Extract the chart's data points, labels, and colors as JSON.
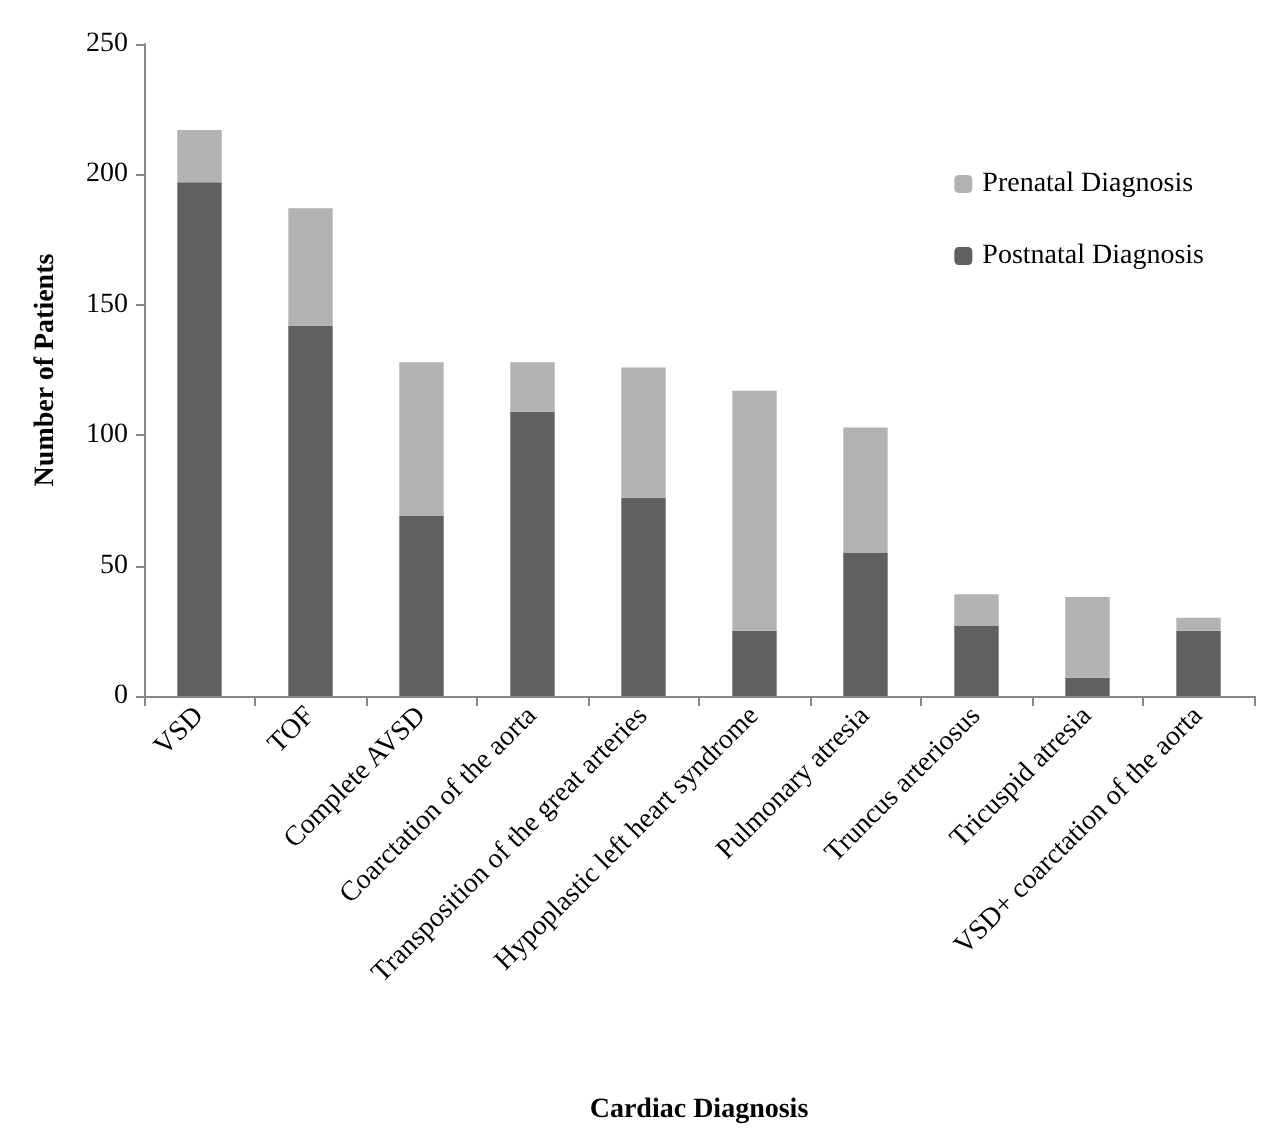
{
  "chart_data": {
    "type": "bar",
    "stacked": true,
    "xlabel": "Cardiac Diagnosis",
    "ylabel": "Number of Patients",
    "categories": [
      "VSD",
      "TOF",
      "Complete AVSD",
      "Coarctation of the aorta",
      "Transposition of the great arteries",
      "Hypoplastic left heart syndrome",
      "Pulmonary atresia",
      "Truncus arteriosus",
      "Tricuspid atresia",
      "VSD+ coarctation of the aorta"
    ],
    "series": [
      {
        "name": "Postnatal Diagnosis",
        "color": "#606060",
        "values": [
          197,
          142,
          69,
          109,
          76,
          25,
          55,
          27,
          7,
          25
        ]
      },
      {
        "name": "Prenatal Diagnosis",
        "color": "#b2b2b2",
        "values": [
          20,
          45,
          59,
          19,
          50,
          92,
          48,
          12,
          31,
          5
        ]
      }
    ],
    "ylim": [
      0,
      250
    ],
    "yticks": [
      0,
      50,
      100,
      150,
      200,
      250
    ],
    "grid": false,
    "legend": "top right"
  }
}
